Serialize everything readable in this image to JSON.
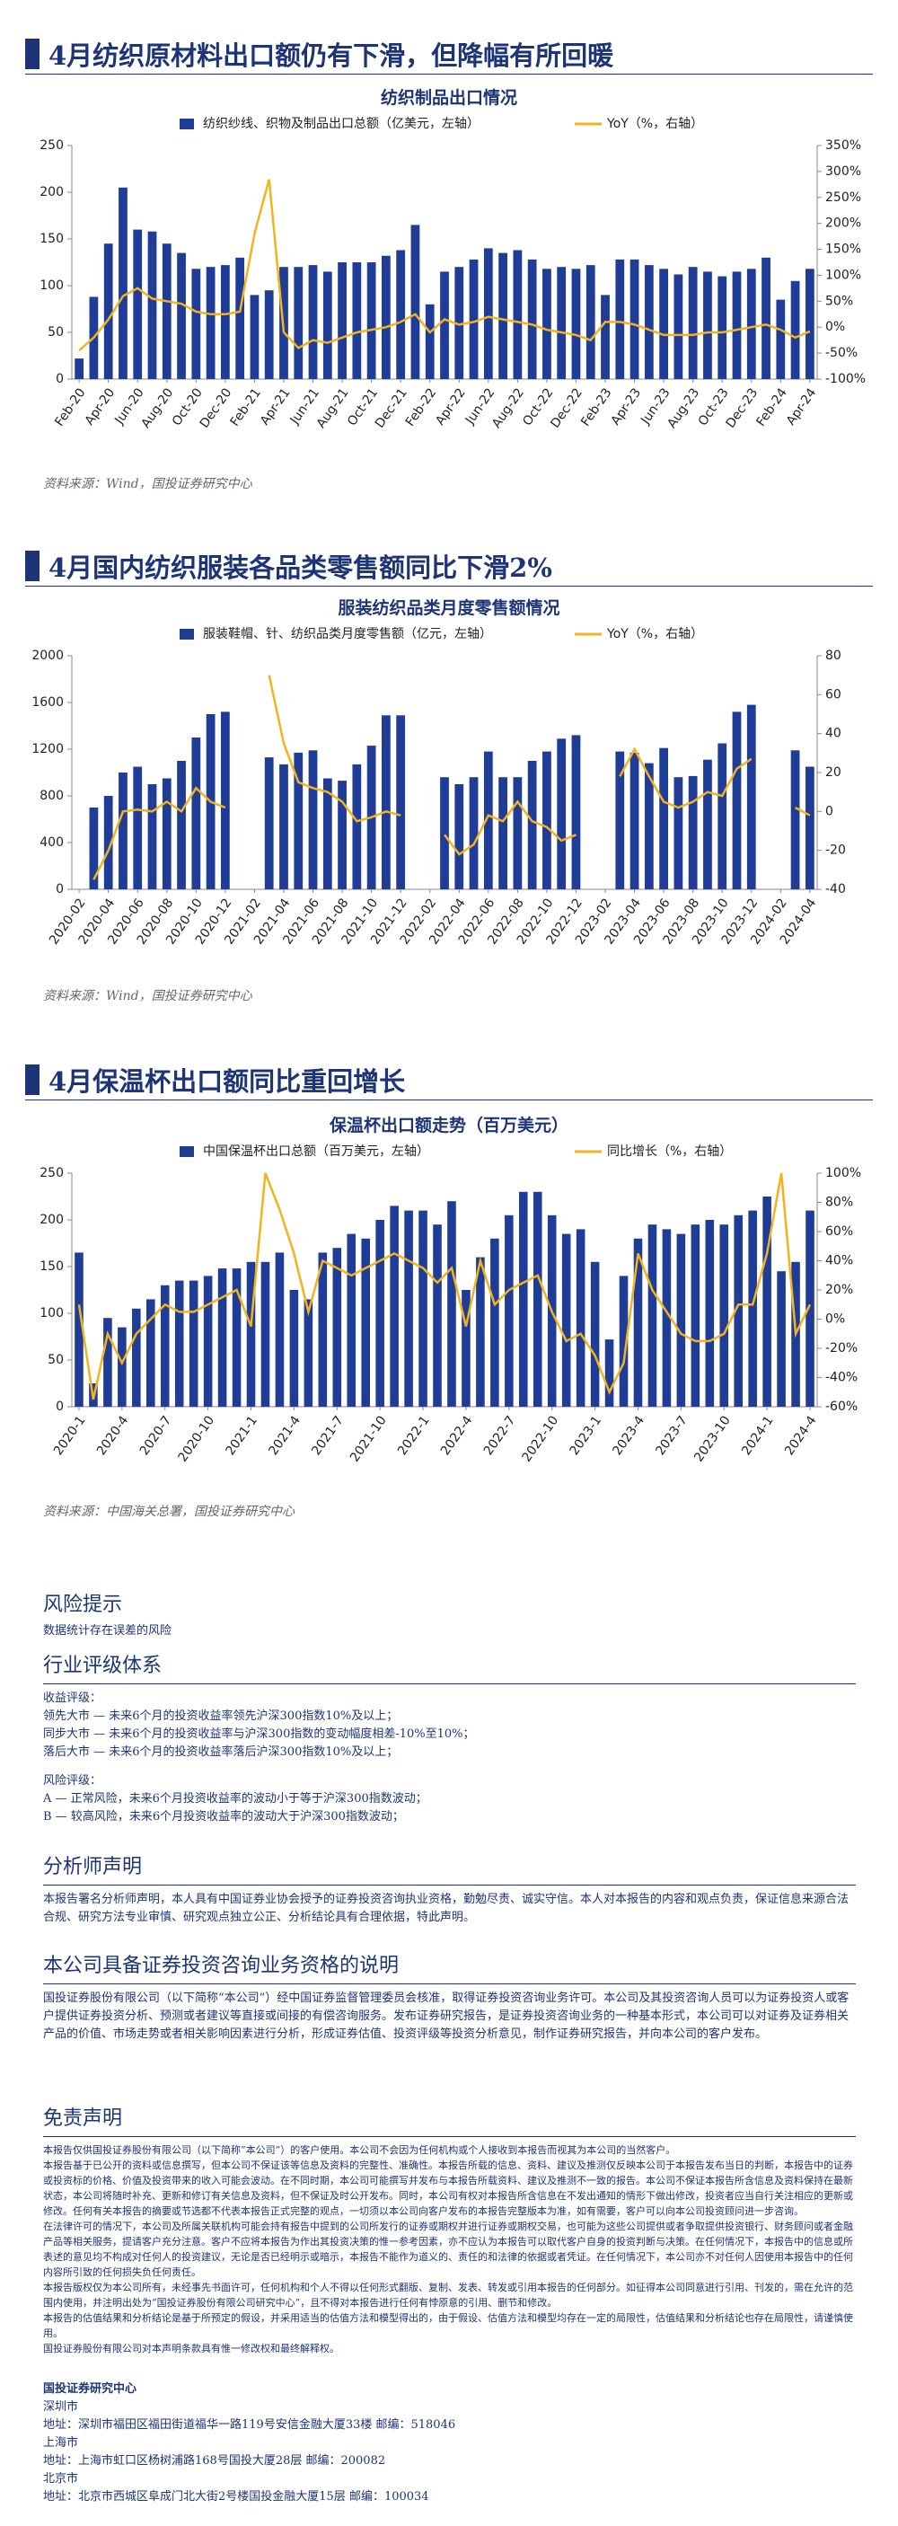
{
  "sections": [
    {
      "heading": "4月纺织原材料出口额仍有下滑，但降幅有所回暖",
      "source": "资料来源：Wind，国投证券研究中心"
    },
    {
      "heading": "4月国内纺织服装各品类零售额同比下滑2%",
      "source": "资料来源：Wind，国投证券研究中心"
    },
    {
      "heading": "4月保温杯出口额同比重回增长",
      "source": "资料来源：中国海关总署，国投证券研究中心"
    }
  ],
  "chart_data": [
    {
      "type": "bar-line",
      "title": "纺织制品出口情况",
      "categories": [
        "Feb-20",
        null,
        "Apr-20",
        null,
        "Jun-20",
        null,
        "Aug-20",
        null,
        "Oct-20",
        null,
        "Dec-20",
        null,
        "Feb-21",
        null,
        "Apr-21",
        null,
        "Jun-21",
        null,
        "Aug-21",
        null,
        "Oct-21",
        null,
        "Dec-21",
        null,
        "Feb-22",
        null,
        "Apr-22",
        null,
        "Jun-22",
        null,
        "Aug-22",
        null,
        "Oct-22",
        null,
        "Dec-22",
        null,
        "Feb-23",
        null,
        "Apr-23",
        null,
        "Jun-23",
        null,
        "Aug-23",
        null,
        "Oct-23",
        null,
        "Dec-23",
        null,
        "Feb-24",
        null,
        "Apr-24"
      ],
      "series": [
        {
          "name": "纺织纱线、织物及制品出口总额（亿美元，左轴）",
          "type": "bar",
          "color": "#1f3c96",
          "values": [
            22,
            88,
            145,
            205,
            160,
            158,
            145,
            135,
            118,
            120,
            122,
            130,
            90,
            95,
            120,
            120,
            122,
            115,
            125,
            125,
            125,
            132,
            138,
            165,
            80,
            115,
            120,
            128,
            140,
            135,
            138,
            128,
            118,
            120,
            118,
            122,
            90,
            128,
            128,
            122,
            118,
            112,
            120,
            115,
            110,
            115,
            118,
            130,
            85,
            105,
            118
          ]
        },
        {
          "name": "YoY（%，右轴）",
          "type": "line",
          "axis": "y2",
          "color": "#f2b31c",
          "values": [
            -45,
            -20,
            15,
            60,
            75,
            55,
            50,
            45,
            30,
            25,
            25,
            30,
            180,
            285,
            -10,
            -40,
            -25,
            -30,
            -20,
            -10,
            -5,
            0,
            10,
            25,
            -10,
            15,
            5,
            10,
            20,
            15,
            10,
            5,
            -5,
            -10,
            -15,
            -25,
            10,
            10,
            5,
            -5,
            -15,
            -15,
            -15,
            -10,
            -10,
            -5,
            0,
            5,
            -5,
            -20,
            -8
          ]
        }
      ],
      "ylim": [
        0,
        250
      ],
      "yticks": [
        0,
        50,
        100,
        150,
        200,
        250
      ],
      "y2lim": [
        -100,
        350
      ],
      "y2ticks": [
        {
          "value": -100,
          "label": "-100%"
        },
        {
          "value": -50,
          "label": "-50%"
        },
        {
          "value": 0,
          "label": "0%"
        },
        {
          "value": 50,
          "label": "50%"
        },
        {
          "value": 100,
          "label": "100%"
        },
        {
          "value": 150,
          "label": "150%"
        },
        {
          "value": 200,
          "label": "200%"
        },
        {
          "value": 250,
          "label": "250%"
        },
        {
          "value": 300,
          "label": "300%"
        },
        {
          "value": 350,
          "label": "350%"
        }
      ]
    },
    {
      "type": "bar-line",
      "title": "服装纺织品类月度零售额情况",
      "categories": [
        "2020-02",
        null,
        "2020-04",
        null,
        "2020-06",
        null,
        "2020-08",
        null,
        "2020-10",
        null,
        "2020-12",
        null,
        "2021-02",
        null,
        "2021-04",
        null,
        "2021-06",
        null,
        "2021-08",
        null,
        "2021-10",
        null,
        "2021-12",
        null,
        "2022-02",
        null,
        "2022-04",
        null,
        "2022-06",
        null,
        "2022-08",
        null,
        "2022-10",
        null,
        "2022-12",
        null,
        "2023-02",
        null,
        "2023-04",
        null,
        "2023-06",
        null,
        "2023-08",
        null,
        "2023-10",
        null,
        "2023-12",
        null,
        "2024-02",
        null,
        "2024-04"
      ],
      "series": [
        {
          "name": "服装鞋帽、针、纺织品类月度零售额（亿元，左轴）",
          "type": "bar",
          "color": "#1f3c96",
          "values": [
            null,
            700,
            800,
            1000,
            1050,
            900,
            950,
            1100,
            1300,
            1500,
            1520,
            null,
            null,
            1130,
            1070,
            1170,
            1190,
            950,
            930,
            1070,
            1230,
            1490,
            1490,
            null,
            null,
            960,
            900,
            960,
            1180,
            960,
            960,
            1100,
            1180,
            1290,
            1320,
            null,
            null,
            1180,
            1170,
            1080,
            1210,
            960,
            970,
            1110,
            1250,
            1520,
            1580,
            null,
            null,
            1190,
            1050
          ]
        },
        {
          "name": "YoY（%，右轴）",
          "type": "line",
          "axis": "y2",
          "color": "#f2b31c",
          "values": [
            null,
            -35,
            -20,
            0,
            1,
            0,
            5,
            0,
            12,
            5,
            2,
            null,
            null,
            70,
            35,
            15,
            12,
            10,
            5,
            -5,
            -3,
            0,
            -2,
            null,
            null,
            -12,
            -22,
            -17,
            -2,
            -5,
            5,
            -5,
            -8,
            -15,
            -12,
            null,
            null,
            18,
            32,
            18,
            5,
            2,
            5,
            10,
            8,
            22,
            27,
            null,
            null,
            2,
            -2
          ]
        }
      ],
      "ylim": [
        0,
        2000
      ],
      "yticks": [
        0,
        400,
        800,
        1200,
        1600,
        2000
      ],
      "y2lim": [
        -40,
        80
      ],
      "y2ticks": [
        -40,
        -20,
        0,
        20,
        40,
        60,
        80
      ]
    },
    {
      "type": "bar-line",
      "title": "保温杯出口额走势（百万美元）",
      "categories": [
        "2020-1",
        null,
        null,
        "2020-4",
        null,
        null,
        "2020-7",
        null,
        null,
        "2020-10",
        null,
        null,
        "2021-1",
        null,
        null,
        "2021-4",
        null,
        null,
        "2021-7",
        null,
        null,
        "2021-10",
        null,
        null,
        "2022-1",
        null,
        null,
        "2022-4",
        null,
        null,
        "2022-7",
        null,
        null,
        "2022-10",
        null,
        null,
        "2023-1",
        null,
        null,
        "2023-4",
        null,
        null,
        "2023-7",
        null,
        null,
        "2023-10",
        null,
        null,
        "2024-1",
        null,
        null,
        "2024-4"
      ],
      "series": [
        {
          "name": "中国保温杯出口总额（百万美元，左轴）",
          "type": "bar",
          "color": "#1f3c96",
          "values": [
            165,
            25,
            95,
            85,
            105,
            115,
            130,
            135,
            135,
            140,
            148,
            148,
            155,
            155,
            165,
            125,
            115,
            165,
            170,
            185,
            180,
            200,
            215,
            210,
            210,
            195,
            220,
            125,
            160,
            180,
            205,
            230,
            230,
            205,
            185,
            190,
            155,
            72,
            140,
            180,
            195,
            190,
            185,
            195,
            200,
            195,
            205,
            210,
            225,
            145,
            155,
            210
          ]
        },
        {
          "name": "同比增长（%，右轴）",
          "type": "line",
          "axis": "y2",
          "color": "#f2b31c",
          "values": [
            10,
            -55,
            -10,
            -30,
            -10,
            0,
            10,
            5,
            5,
            10,
            15,
            20,
            -5,
            100,
            75,
            45,
            5,
            40,
            35,
            30,
            35,
            40,
            45,
            40,
            35,
            25,
            35,
            -5,
            40,
            10,
            20,
            25,
            30,
            5,
            -15,
            -10,
            -25,
            -50,
            -30,
            45,
            20,
            5,
            -10,
            -15,
            -15,
            -10,
            10,
            10,
            45,
            100,
            -10,
            10
          ]
        }
      ],
      "ylim": [
        0,
        250
      ],
      "yticks": [
        0,
        50,
        100,
        150,
        200,
        250
      ],
      "y2lim": [
        -60,
        100
      ],
      "y2ticks": [
        {
          "value": -60,
          "label": "-60%"
        },
        {
          "value": -40,
          "label": "-40%"
        },
        {
          "value": -20,
          "label": "-20%"
        },
        {
          "value": 0,
          "label": "0%"
        },
        {
          "value": 20,
          "label": "20%"
        },
        {
          "value": 40,
          "label": "40%"
        },
        {
          "value": 60,
          "label": "60%"
        },
        {
          "value": 80,
          "label": "80%"
        },
        {
          "value": 100,
          "label": "100%"
        }
      ]
    }
  ],
  "risk": {
    "title": "风险提示",
    "text": "数据统计存在误差的风险"
  },
  "rating": {
    "title": "行业评级体系",
    "return_title": "收益评级：",
    "return_items": [
      "领先大市 — 未来6个月的投资收益率领先沪深300指数10%及以上；",
      "同步大市 — 未来6个月的投资收益率与沪深300指数的变动幅度相差-10%至10%；",
      "落后大市 — 未来6个月的投资收益率落后沪深300指数10%及以上；"
    ],
    "risk_title": "风险评级：",
    "risk_items": [
      "A — 正常风险，未来6个月投资收益率的波动小于等于沪深300指数波动；",
      "B — 较高风险，未来6个月投资收益率的波动大于沪深300指数波动；"
    ]
  },
  "analyst": {
    "title": "分析师声明",
    "text": "本报告署名分析师声明，本人具有中国证券业协会授予的证券投资咨询执业资格，勤勉尽责、诚实守信。本人对本报告的内容和观点负责，保证信息来源合法合规、研究方法专业审慎、研究观点独立公正、分析结论具有合理依据，特此声明。"
  },
  "qualification": {
    "title": "本公司具备证券投资咨询业务资格的说明",
    "text": "国投证券股份有限公司（以下简称“本公司”）经中国证券监督管理委员会核准，取得证券投资咨询业务许可。本公司及其投资咨询人员可以为证券投资人或客户提供证券投资分析、预测或者建议等直接或间接的有偿咨询服务。发布证券研究报告，是证券投资咨询业务的一种基本形式，本公司可以对证券及证券相关产品的价值、市场走势或者相关影响因素进行分析，形成证券估值、投资评级等投资分析意见，制作证券研究报告，并向本公司的客户发布。"
  },
  "disclaimer": {
    "title": "免责声明",
    "paragraphs": [
      "本报告仅供国投证券股份有限公司（以下简称“本公司”）的客户使用。本公司不会因为任何机构或个人接收到本报告而视其为本公司的当然客户。",
      "本报告基于已公开的资料或信息撰写，但本公司不保证该等信息及资料的完整性、准确性。本报告所载的信息、资料、建议及推测仅反映本公司于本报告发布当日的判断，本报告中的证券或投资标的价格、价值及投资带来的收入可能会波动。在不同时期，本公司可能撰写并发布与本报告所载资料、建议及推测不一致的报告。本公司不保证本报告所含信息及资料保持在最新状态，本公司将随时补充、更新和修订有关信息及资料，但不保证及时公开发布。同时，本公司有权对本报告所含信息在不发出通知的情形下做出修改，投资者应当自行关注相应的更新或修改。任何有关本报告的摘要或节选都不代表本报告正式完整的观点，一切须以本公司向客户发布的本报告完整版本为准，如有需要，客户可以向本公司投资顾问进一步咨询。",
      "在法律许可的情况下，本公司及所属关联机构可能会持有报告中提到的公司所发行的证券或期权并进行证券或期权交易，也可能为这些公司提供或者争取提供投资银行、财务顾问或者金融产品等相关服务，提请客户充分注意。客户不应将本报告为作出其投资决策的惟一参考因素，亦不应认为本报告可以取代客户自身的投资判断与决策。在任何情况下，本报告中的信息或所表述的意见均不构成对任何人的投资建议，无论是否已经明示或暗示，本报告不能作为道义的、责任的和法律的依据或者凭证。在任何情况下，本公司亦不对任何人因使用本报告中的任何内容所引致的任何损失负任何责任。",
      "本报告版权仅为本公司所有，未经事先书面许可，任何机构和个人不得以任何形式翻版、复制、发表、转发或引用本报告的任何部分。如征得本公司同意进行引用、刊发的，需在允许的范围内使用，并注明出处为“国投证券股份有限公司研究中心”，且不得对本报告进行任何有悖原意的引用、删节和修改。",
      "本报告的估值结果和分析结论是基于所预定的假设，并采用适当的估值方法和模型得出的，由于假设、估值方法和模型均存在一定的局限性，估值结果和分析结论也存在局限性，请谨慎使用。",
      "国投证券股份有限公司对本声明条款具有惟一修改权和最终解释权。"
    ]
  },
  "footer": {
    "org": "国投证券研究中心",
    "offices": [
      {
        "city": "深圳市",
        "address": "地址：深圳市福田区福田街道福华一路119号安信金融大厦33楼  邮编：518046"
      },
      {
        "city": "上海市",
        "address": "地址：上海市虹口区杨树浦路168号国投大厦28层  邮编：200082"
      },
      {
        "city": "北京市",
        "address": "地址：北京市西城区阜成门北大街2号楼国投金融大厦15层  邮编：100034"
      }
    ]
  }
}
